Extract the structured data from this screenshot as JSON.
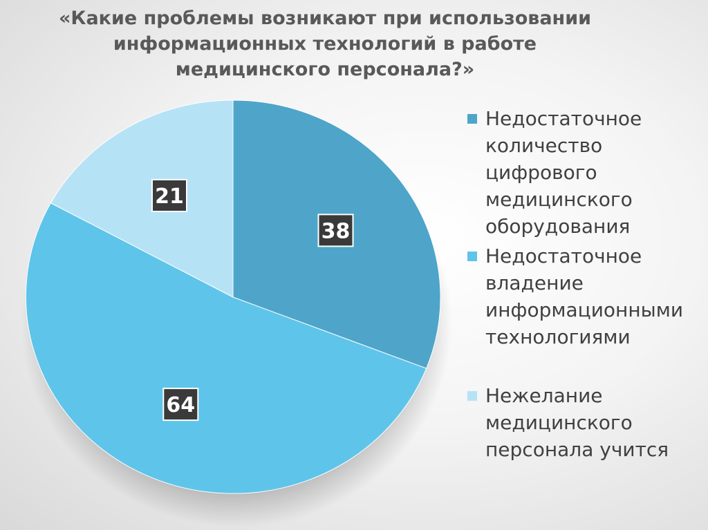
{
  "chart_data": {
    "type": "pie",
    "title": "«Какие проблемы возникают при использовании информационных технологий в работе медицинского персонала?»",
    "slices": [
      {
        "label": "Недостаточное\nколичество\nцифрового\nмедицинского\nоборудования",
        "value": 38,
        "color": "#4ea5c9"
      },
      {
        "label": "Недостаточное\nвладение\nинформационными\nтехнологиями",
        "value": 64,
        "color": "#5fc4ea"
      },
      {
        "label": "Нежелание\nмедицинского\nперсонала  учится",
        "value": 21,
        "color": "#b6e2f6"
      }
    ],
    "legend_position": "right"
  }
}
